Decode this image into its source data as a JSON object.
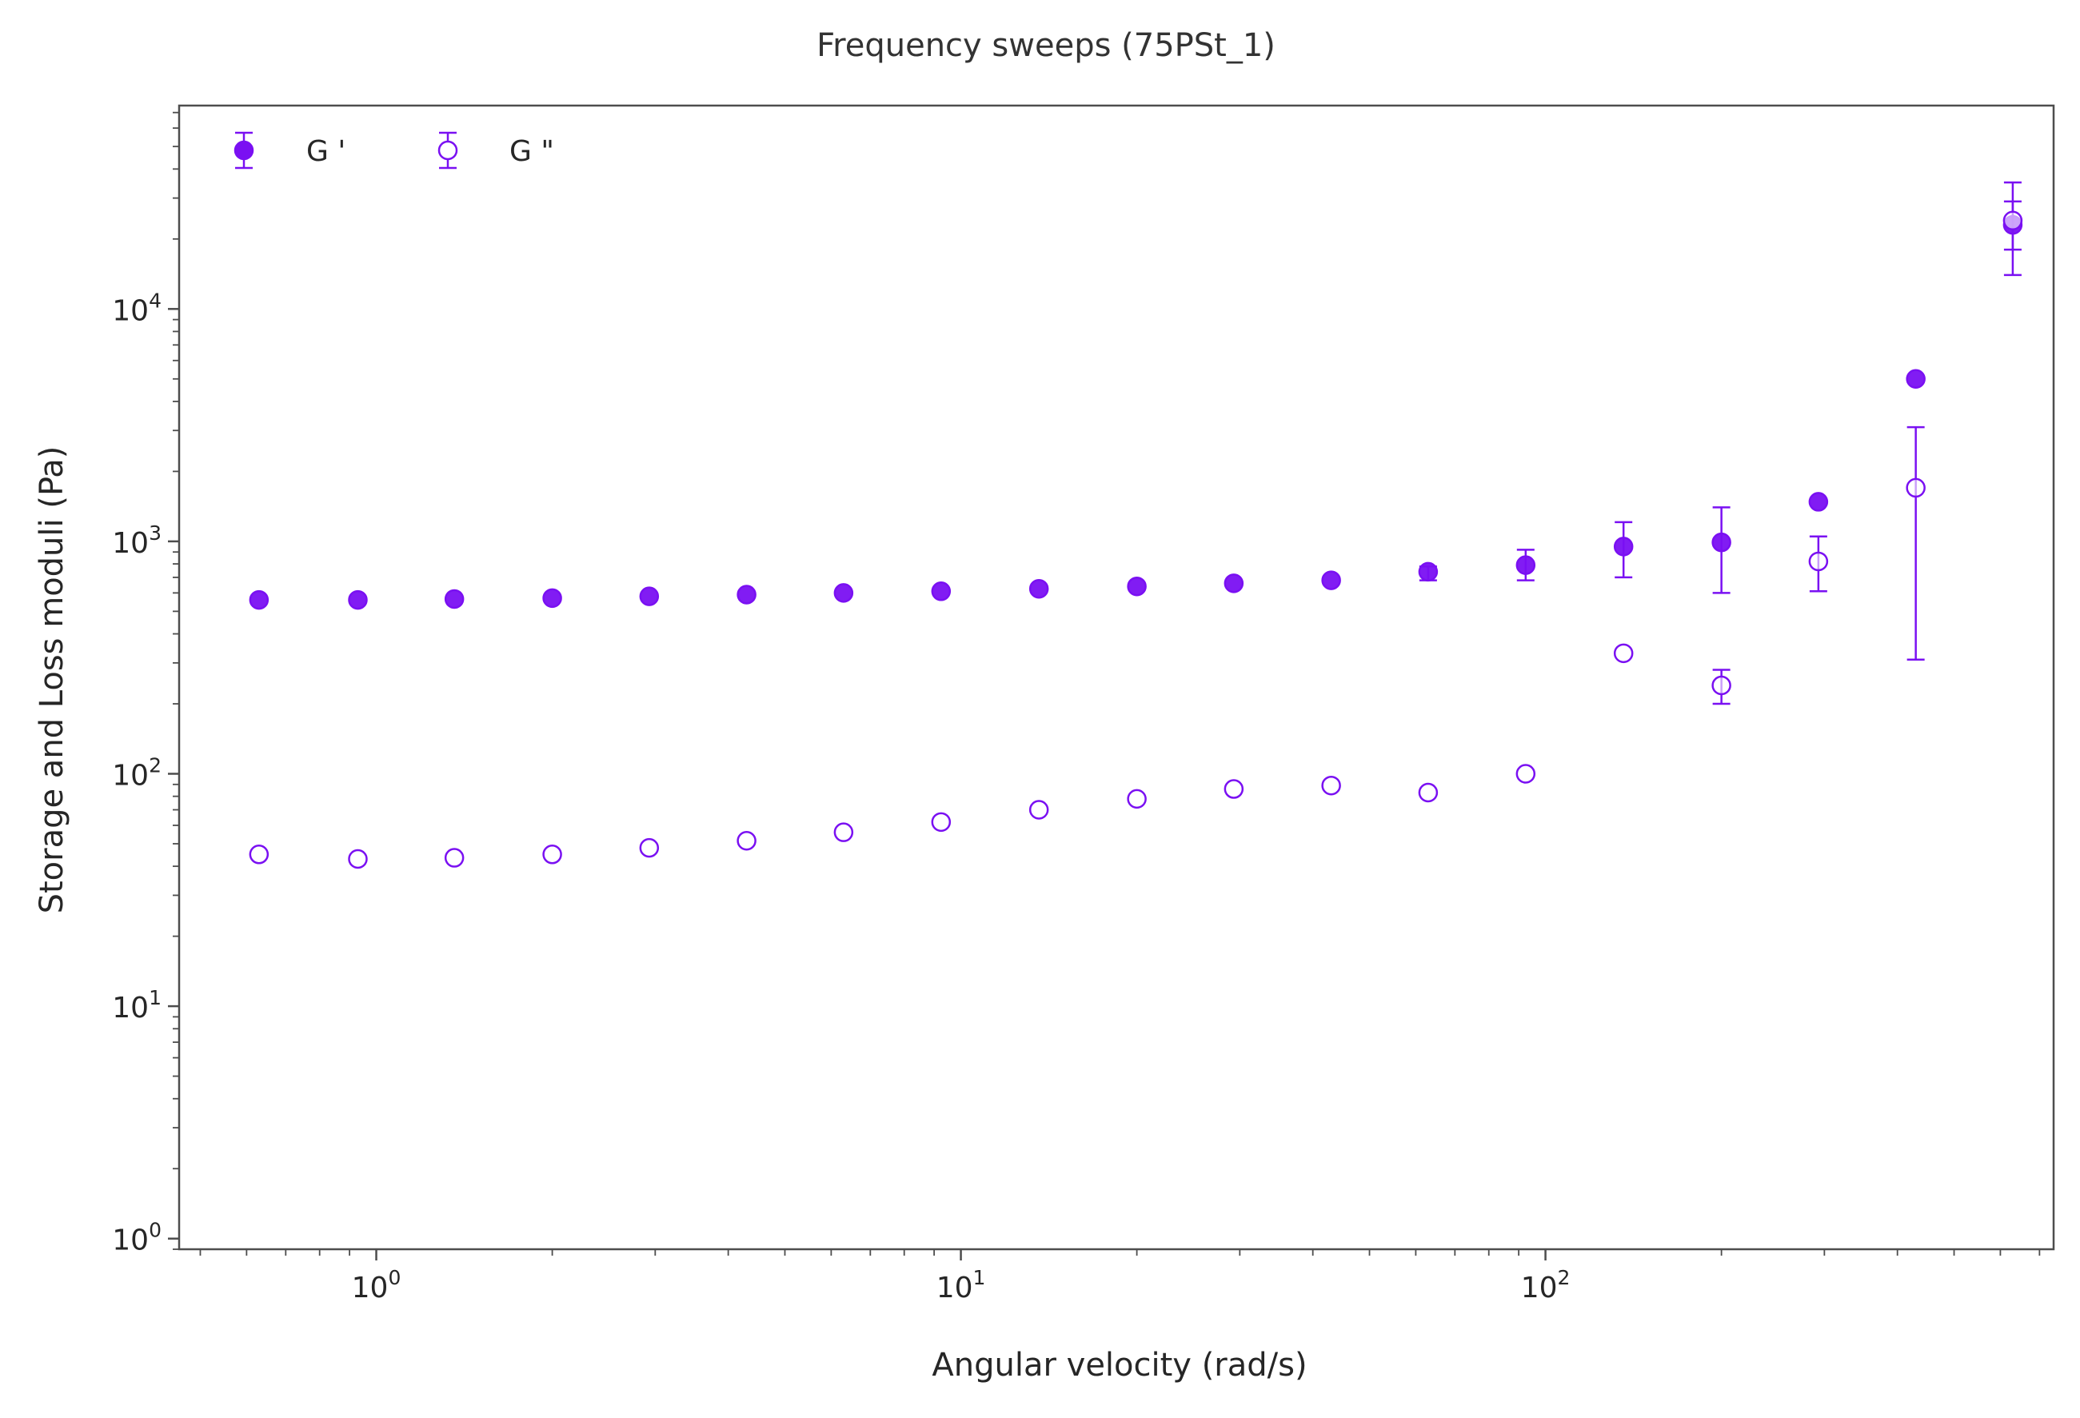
{
  "chart_data": {
    "type": "scatter",
    "title": "Frequency sweeps (75PSt_1)",
    "xlabel": "Angular velocity (rad/s)",
    "ylabel": "Storage and Loss moduli (Pa)",
    "xscale": "log",
    "yscale": "log",
    "xlim": [
      0.46,
      740
    ],
    "ylim": [
      0.9,
      75000
    ],
    "x_ticks": [
      1,
      10,
      100
    ],
    "x_tick_labels": [
      {
        "base": "10",
        "exp": "0"
      },
      {
        "base": "10",
        "exp": "1"
      },
      {
        "base": "10",
        "exp": "2"
      }
    ],
    "y_ticks": [
      1,
      10,
      100,
      1000,
      10000
    ],
    "y_tick_labels": [
      {
        "base": "10",
        "exp": "0"
      },
      {
        "base": "10",
        "exp": "1"
      },
      {
        "base": "10",
        "exp": "2"
      },
      {
        "base": "10",
        "exp": "3"
      },
      {
        "base": "10",
        "exp": "4"
      }
    ],
    "grid": false,
    "legend_position": "top-left",
    "series_color": "#7a10f2",
    "series": [
      {
        "name": "G '",
        "marker": "filled-circle",
        "x": [
          0.63,
          0.93,
          1.36,
          2.0,
          2.93,
          4.3,
          6.3,
          9.25,
          13.6,
          20.0,
          29.3,
          43.0,
          63.0,
          92.5,
          136,
          200,
          293,
          430,
          630
        ],
        "y": [
          560,
          560,
          565,
          570,
          580,
          590,
          600,
          610,
          625,
          640,
          660,
          680,
          740,
          790,
          950,
          990,
          1480,
          5000,
          23000
        ],
        "error_low": [
          null,
          null,
          null,
          null,
          null,
          null,
          null,
          null,
          null,
          null,
          null,
          null,
          680,
          680,
          700,
          600,
          null,
          null,
          14000
        ],
        "error_high": [
          null,
          null,
          null,
          null,
          null,
          null,
          null,
          null,
          null,
          null,
          null,
          null,
          780,
          920,
          1210,
          1400,
          null,
          null,
          29000
        ]
      },
      {
        "name": "G \"",
        "marker": "open-circle",
        "x": [
          0.63,
          0.93,
          1.36,
          2.0,
          2.93,
          4.3,
          6.3,
          9.25,
          13.6,
          20.0,
          29.3,
          43.0,
          63.0,
          92.5,
          136,
          200,
          293,
          430,
          630
        ],
        "y": [
          45,
          43,
          43.5,
          45,
          48,
          51.5,
          56,
          62,
          70,
          78,
          86,
          89,
          83,
          100,
          330,
          240,
          820,
          1700,
          24000
        ],
        "error_low": [
          null,
          null,
          null,
          null,
          null,
          null,
          null,
          null,
          null,
          null,
          null,
          null,
          null,
          null,
          null,
          200,
          610,
          310,
          18000
        ],
        "error_high": [
          null,
          null,
          null,
          null,
          null,
          null,
          null,
          null,
          null,
          null,
          null,
          null,
          null,
          null,
          null,
          280,
          1050,
          3100,
          35000
        ]
      }
    ]
  }
}
